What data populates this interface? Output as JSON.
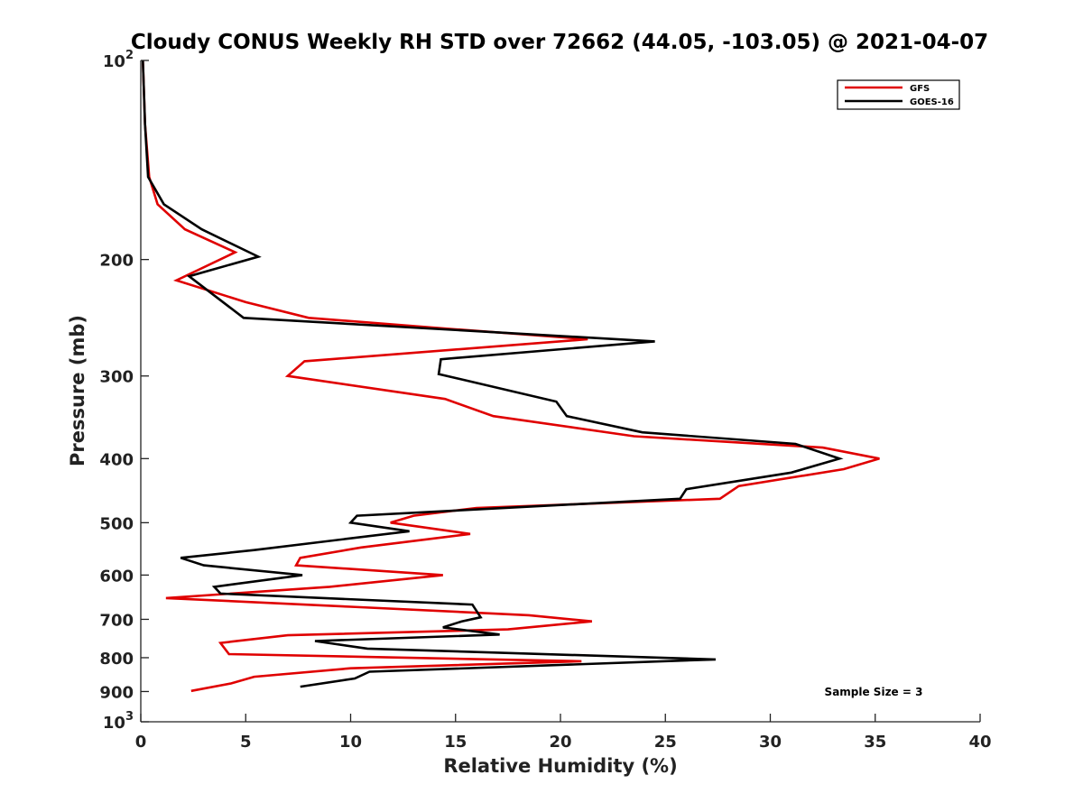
{
  "chart_data": {
    "type": "line",
    "title": "Cloudy CONUS Weekly RH STD over 72662 (44.05, -103.05) @ 2021-04-07",
    "xlabel": "Relative Humidity (%)",
    "ylabel": "Pressure (mb)",
    "xlim": [
      0,
      40
    ],
    "ylim": [
      100,
      1000
    ],
    "y_scale": "log",
    "y_reversed": true,
    "x_ticks": [
      0,
      5,
      10,
      15,
      20,
      25,
      30,
      35,
      40
    ],
    "x_tick_labels": [
      "0",
      "5",
      "10",
      "15",
      "20",
      "25",
      "30",
      "35",
      "40"
    ],
    "y_ticks": [
      100,
      200,
      300,
      400,
      500,
      600,
      700,
      800,
      900,
      1000
    ],
    "y_tick_labels": [
      {
        "base": "10",
        "exp": "2"
      },
      {
        "base": "200",
        "exp": ""
      },
      {
        "base": "300",
        "exp": ""
      },
      {
        "base": "400",
        "exp": ""
      },
      {
        "base": "500",
        "exp": ""
      },
      {
        "base": "600",
        "exp": ""
      },
      {
        "base": "700",
        "exp": ""
      },
      {
        "base": "800",
        "exp": ""
      },
      {
        "base": "900",
        "exp": ""
      },
      {
        "base": "10",
        "exp": "3"
      }
    ],
    "legend_position": "top-right",
    "annotation": "Sample Size = 3",
    "series": [
      {
        "name": "GFS",
        "color": "#e00000",
        "points": [
          [
            0.1,
            100
          ],
          [
            0.2,
            125
          ],
          [
            0.4,
            150
          ],
          [
            0.8,
            165
          ],
          [
            2.1,
            180
          ],
          [
            4.5,
            195
          ],
          [
            1.7,
            215
          ],
          [
            5,
            232
          ],
          [
            8,
            245
          ],
          [
            15,
            255
          ],
          [
            21.3,
            264
          ],
          [
            7.8,
            285
          ],
          [
            7,
            300
          ],
          [
            14.5,
            325
          ],
          [
            16.8,
            345
          ],
          [
            23.5,
            370
          ],
          [
            32.5,
            385
          ],
          [
            35.2,
            400
          ],
          [
            33.5,
            415
          ],
          [
            28.5,
            440
          ],
          [
            27.6,
            460
          ],
          [
            16,
            475
          ],
          [
            13,
            488
          ],
          [
            11.9,
            500
          ],
          [
            15.7,
            520
          ],
          [
            10.5,
            545
          ],
          [
            7.6,
            565
          ],
          [
            7.4,
            580
          ],
          [
            14.4,
            600
          ],
          [
            9,
            625
          ],
          [
            1.2,
            650
          ],
          [
            10,
            670
          ],
          [
            18.5,
            690
          ],
          [
            21.5,
            705
          ],
          [
            17.5,
            725
          ],
          [
            7,
            740
          ],
          [
            3.8,
            760
          ],
          [
            4.2,
            790
          ],
          [
            21,
            810
          ],
          [
            10,
            830
          ],
          [
            5.4,
            855
          ],
          [
            4.3,
            875
          ],
          [
            2.4,
            898
          ]
        ]
      },
      {
        "name": "GOES-16",
        "color": "#000000",
        "points": [
          [
            0.1,
            100
          ],
          [
            0.2,
            125
          ],
          [
            0.35,
            150
          ],
          [
            1.1,
            165
          ],
          [
            2.9,
            180
          ],
          [
            5.6,
            198
          ],
          [
            2.3,
            212
          ],
          [
            4.9,
            245
          ],
          [
            24.5,
            266
          ],
          [
            14.3,
            283
          ],
          [
            14.2,
            298
          ],
          [
            19.8,
            328
          ],
          [
            20.3,
            345
          ],
          [
            23.9,
            365
          ],
          [
            31.2,
            380
          ],
          [
            33.3,
            400
          ],
          [
            31,
            420
          ],
          [
            26,
            445
          ],
          [
            25.7,
            460
          ],
          [
            10.3,
            488
          ],
          [
            10,
            500
          ],
          [
            12.8,
            515
          ],
          [
            5.4,
            550
          ],
          [
            1.9,
            565
          ],
          [
            3,
            580
          ],
          [
            7.7,
            600
          ],
          [
            3.5,
            625
          ],
          [
            3.8,
            640
          ],
          [
            15.8,
            665
          ],
          [
            16.2,
            695
          ],
          [
            15.3,
            705
          ],
          [
            14.4,
            720
          ],
          [
            17.1,
            738
          ],
          [
            8.3,
            755
          ],
          [
            10.8,
            775
          ],
          [
            27.4,
            805
          ],
          [
            10.9,
            840
          ],
          [
            10.2,
            860
          ],
          [
            7.6,
            885
          ]
        ]
      }
    ]
  }
}
